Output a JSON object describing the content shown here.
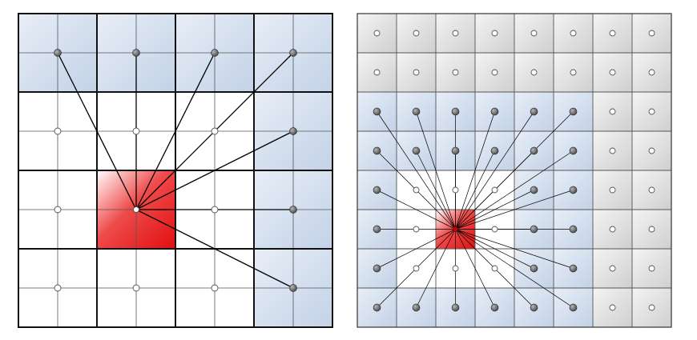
{
  "diagrams": [
    {
      "name": "coarse-grid",
      "grid_size": 8,
      "block_size": 2,
      "colors": {
        "highlight": "#e01a1a",
        "neighbor_fill": "#cdd9ea",
        "empty_fill": "#ffffff",
        "grid_line": "#555555",
        "block_line": "#111111",
        "link_line": "#000000",
        "dot_filled": "#6f6f6f",
        "dot_open": "#ffffff"
      },
      "highlight_block": [
        1,
        2
      ],
      "neighbor_blocks": [
        [
          0,
          0
        ],
        [
          1,
          0
        ],
        [
          2,
          0
        ],
        [
          3,
          0
        ],
        [
          3,
          1
        ],
        [
          3,
          2
        ],
        [
          3,
          3
        ]
      ],
      "open_dot_blocks": [
        [
          0,
          1
        ],
        [
          1,
          1
        ],
        [
          2,
          1
        ],
        [
          0,
          2
        ],
        [
          2,
          2
        ],
        [
          0,
          3
        ],
        [
          1,
          3
        ],
        [
          2,
          3
        ]
      ],
      "linked_dots": [
        [
          1,
          1
        ],
        [
          3,
          1
        ],
        [
          5,
          1
        ],
        [
          7,
          1
        ],
        [
          7,
          3
        ],
        [
          7,
          5
        ],
        [
          7,
          7
        ]
      ],
      "source_dot": [
        3,
        5
      ]
    },
    {
      "name": "fine-grid",
      "grid_size": 8,
      "colors": {
        "highlight": "#e01a1a",
        "neighbor_fill": "#cdd9ea",
        "empty_fill": "#ffffff",
        "gray_fill": "#dedede",
        "grid_line": "#555555",
        "link_line": "#000000",
        "dot_filled": "#6f6f6f",
        "dot_open": "#ffffff"
      },
      "highlight_cell": [
        2,
        5
      ],
      "gray_columns": [
        6,
        7
      ],
      "gray_rows": [
        0,
        1
      ],
      "white_region": {
        "cols": [
          1,
          3
        ],
        "rows": [
          4,
          6
        ]
      },
      "source_dot": [
        2,
        5
      ]
    }
  ]
}
